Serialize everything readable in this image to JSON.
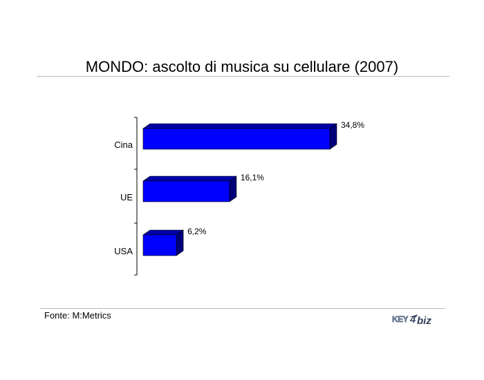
{
  "title": "MONDO: ascolto di musica su cellulare (2007)",
  "source": "Fonte: M:Metrics",
  "logo_text": "KEY4biz",
  "chart_data": {
    "type": "bar",
    "orientation": "horizontal",
    "categories": [
      "Cina",
      "UE",
      "USA"
    ],
    "values": [
      34.8,
      16.1,
      6.2
    ],
    "value_labels": [
      "34,8%",
      "16,1%",
      "6,2%"
    ],
    "unit": "%",
    "xlim": [
      0,
      40
    ],
    "bar_color": "#0000ff",
    "grid": false,
    "legend": "none",
    "style": "3d"
  }
}
